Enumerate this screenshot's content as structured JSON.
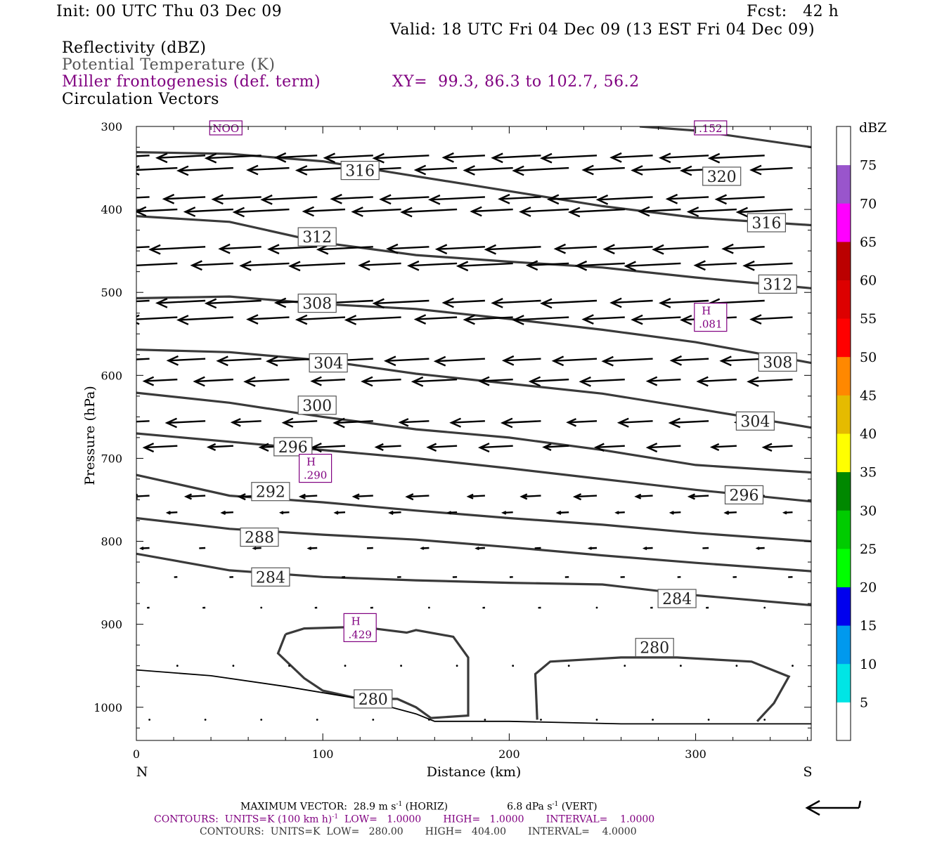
{
  "header": {
    "init": "Init: 00 UTC Thu 03 Dec 09",
    "fcst": "Fcst:   42 h",
    "valid": "Valid: 18 UTC Fri 04 Dec 09 (13 EST Fri 04 Dec 09)",
    "field1": "Reflectivity (dBZ)",
    "field2": "Potential Temperature (K)",
    "field3": "Miller frontogenesis (def. term)",
    "xy": "XY=  99.3, 86.3 to 102.7, 56.2",
    "field4": "Circulation Vectors"
  },
  "footer": {
    "maxvec": "MAXIMUM VECTOR:  28.9 m s",
    "maxvec_horiz": " (HORIZ)",
    "maxvec_vert": "6.8 dPa s",
    "maxvec_vert_tail": " (VERT)",
    "exp": "-1",
    "contours1_a": "CONTOURS:  UNITS=K (100 km h)",
    "contours1_b": "  LOW=   1.0000       HIGH=   1.0000       INTERVAL=    1.0000",
    "contours2": "CONTOURS:  UNITS=K  LOW=   280.00       HIGH=   404.00       INTERVAL=    4.0000"
  },
  "chart_data": {
    "type": "line",
    "xlabel": "Distance (km)",
    "ylabel": "Pressure (hPa)",
    "xlim": [
      0,
      362
    ],
    "ylim": [
      1040,
      300
    ],
    "x_ticks": [
      0,
      100,
      200,
      300
    ],
    "y_ticks": [
      300,
      400,
      500,
      600,
      700,
      800,
      900,
      1000
    ],
    "x_end_labels": {
      "left": "N",
      "right": "S"
    },
    "isentropes": [
      {
        "label": "320",
        "points": [
          [
            270,
            300
          ],
          [
            300,
            305
          ],
          [
            362,
            325
          ]
        ],
        "label_at": [
          320,
          359
        ]
      },
      {
        "label": "316",
        "points": [
          [
            0,
            331
          ],
          [
            50,
            333
          ],
          [
            100,
            342
          ],
          [
            150,
            360
          ],
          [
            200,
            378
          ],
          [
            250,
            396
          ],
          [
            300,
            410
          ],
          [
            362,
            419
          ]
        ],
        "label_at": [
          338,
          416
        ]
      },
      {
        "label": "312",
        "points": [
          [
            0,
            408
          ],
          [
            50,
            415
          ],
          [
            100,
            440
          ],
          [
            150,
            455
          ],
          [
            200,
            463
          ],
          [
            250,
            470
          ],
          [
            300,
            482
          ],
          [
            362,
            495
          ]
        ],
        "label_at": [
          346,
          492
        ]
      },
      {
        "label": "308",
        "points": [
          [
            0,
            507
          ],
          [
            50,
            505
          ],
          [
            100,
            514
          ],
          [
            150,
            520
          ],
          [
            200,
            532
          ],
          [
            250,
            545
          ],
          [
            300,
            560
          ],
          [
            362,
            585
          ]
        ],
        "label_at": [
          346,
          586
        ]
      },
      {
        "label": "304",
        "points": [
          [
            0,
            569
          ],
          [
            50,
            572
          ],
          [
            100,
            582
          ],
          [
            150,
            598
          ],
          [
            200,
            610
          ],
          [
            250,
            622
          ],
          [
            300,
            640
          ],
          [
            362,
            663
          ]
        ],
        "label_at": [
          334,
          657
        ]
      },
      {
        "label": "300",
        "points": [
          [
            0,
            621
          ],
          [
            50,
            633
          ],
          [
            100,
            650
          ],
          [
            150,
            665
          ],
          [
            200,
            675
          ],
          [
            250,
            690
          ],
          [
            300,
            708
          ],
          [
            362,
            717
          ]
        ],
        "label_at": [
          0,
          0
        ]
      },
      {
        "label": "296",
        "points": [
          [
            0,
            670
          ],
          [
            50,
            680
          ],
          [
            100,
            690
          ],
          [
            150,
            700
          ],
          [
            200,
            712
          ],
          [
            250,
            725
          ],
          [
            300,
            738
          ],
          [
            362,
            752
          ]
        ],
        "label_at": [
          0,
          0
        ]
      },
      {
        "label": "292",
        "points": [
          [
            0,
            720
          ],
          [
            50,
            745
          ],
          [
            100,
            753
          ],
          [
            150,
            763
          ],
          [
            200,
            772
          ],
          [
            250,
            780
          ],
          [
            300,
            790
          ],
          [
            362,
            800
          ]
        ],
        "label_at": [
          0,
          0
        ]
      },
      {
        "label": "288",
        "points": [
          [
            0,
            772
          ],
          [
            50,
            785
          ],
          [
            100,
            792
          ],
          [
            150,
            798
          ],
          [
            200,
            807
          ],
          [
            250,
            817
          ],
          [
            300,
            826
          ],
          [
            362,
            836
          ]
        ],
        "label_at": [
          0,
          0
        ]
      },
      {
        "label": "284",
        "points": [
          [
            0,
            815
          ],
          [
            50,
            835
          ],
          [
            100,
            843
          ],
          [
            150,
            847
          ],
          [
            200,
            850
          ],
          [
            250,
            852
          ],
          [
            300,
            865
          ],
          [
            362,
            877
          ]
        ],
        "label_at": [
          0,
          0
        ]
      }
    ],
    "contour_labels": [
      {
        "text": "316",
        "x": 120,
        "y": 353
      },
      {
        "text": "320",
        "x": 314,
        "y": 360
      },
      {
        "text": "316",
        "x": 338,
        "y": 416
      },
      {
        "text": "312",
        "x": 97,
        "y": 433
      },
      {
        "text": "312",
        "x": 344,
        "y": 490
      },
      {
        "text": "308",
        "x": 97,
        "y": 513
      },
      {
        "text": "308",
        "x": 344,
        "y": 584
      },
      {
        "text": "304",
        "x": 103,
        "y": 585
      },
      {
        "text": "304",
        "x": 332,
        "y": 655
      },
      {
        "text": "300",
        "x": 97,
        "y": 636
      },
      {
        "text": "296",
        "x": 84,
        "y": 686
      },
      {
        "text": "296",
        "x": 326,
        "y": 744
      },
      {
        "text": "292",
        "x": 72,
        "y": 740
      },
      {
        "text": "288",
        "x": 66,
        "y": 795
      },
      {
        "text": "284",
        "x": 72,
        "y": 843
      },
      {
        "text": "284",
        "x": 290,
        "y": 869
      },
      {
        "text": "280",
        "x": 127,
        "y": 990
      },
      {
        "text": "280",
        "x": 278,
        "y": 928
      }
    ],
    "frontogenesis_highs": [
      {
        "label": "H",
        "value": ".290",
        "x": 96,
        "y": 712
      },
      {
        "label": "H",
        "value": ".081",
        "x": 308,
        "y": 530
      },
      {
        "label": "H",
        "value": ".429",
        "x": 120,
        "y": 904
      },
      {
        "label": "",
        "value": ".152",
        "x": 308,
        "y": 307
      },
      {
        "label": "",
        "value": "NOO",
        "x": 48,
        "y": 298
      }
    ],
    "colorbar": {
      "title": "dBZ",
      "levels": [
        5,
        10,
        15,
        20,
        25,
        30,
        35,
        40,
        45,
        50,
        55,
        60,
        65,
        70,
        75
      ],
      "colors": [
        "#00e5e5",
        "#0099ee",
        "#0000ee",
        "#00ff00",
        "#00cc00",
        "#008800",
        "#ffff00",
        "#e5bb00",
        "#ff8800",
        "#ff0000",
        "#dd0000",
        "#bb0000",
        "#ff00ff",
        "#9955cc",
        "#ffffff"
      ]
    },
    "vector_rows": [
      {
        "p": 335,
        "u": -1.0,
        "len_scale": 1.0
      },
      {
        "p": 350,
        "u": -1.0,
        "len_scale": 1.0
      },
      {
        "p": 385,
        "u": -1.0,
        "len_scale": 1.0
      },
      {
        "p": 400,
        "u": -1.0,
        "len_scale": 1.0
      },
      {
        "p": 445,
        "u": -1.0,
        "len_scale": 1.0
      },
      {
        "p": 465,
        "u": -1.0,
        "len_scale": 1.0
      },
      {
        "p": 510,
        "u": -1.0,
        "len_scale": 1.0
      },
      {
        "p": 530,
        "u": -1.0,
        "len_scale": 1.0
      },
      {
        "p": 580,
        "u": -0.9,
        "len_scale": 0.9
      },
      {
        "p": 605,
        "u": -0.9,
        "len_scale": 0.8
      },
      {
        "p": 655,
        "u": -0.8,
        "len_scale": 0.7
      },
      {
        "p": 685,
        "u": -0.8,
        "len_scale": 0.6
      },
      {
        "p": 745,
        "u": -0.5,
        "len_scale": 0.4
      },
      {
        "p": 765,
        "u": -0.4,
        "len_scale": 0.2
      },
      {
        "p": 808,
        "u": -0.3,
        "len_scale": 0.15
      },
      {
        "p": 843,
        "u": -0.2,
        "len_scale": 0.08
      },
      {
        "p": 880,
        "u": -0.2,
        "len_scale": 0.05
      },
      {
        "p": 950,
        "u": -0.1,
        "len_scale": 0.03
      },
      {
        "p": 1015,
        "u": -0.1,
        "len_scale": 0.02
      }
    ]
  }
}
